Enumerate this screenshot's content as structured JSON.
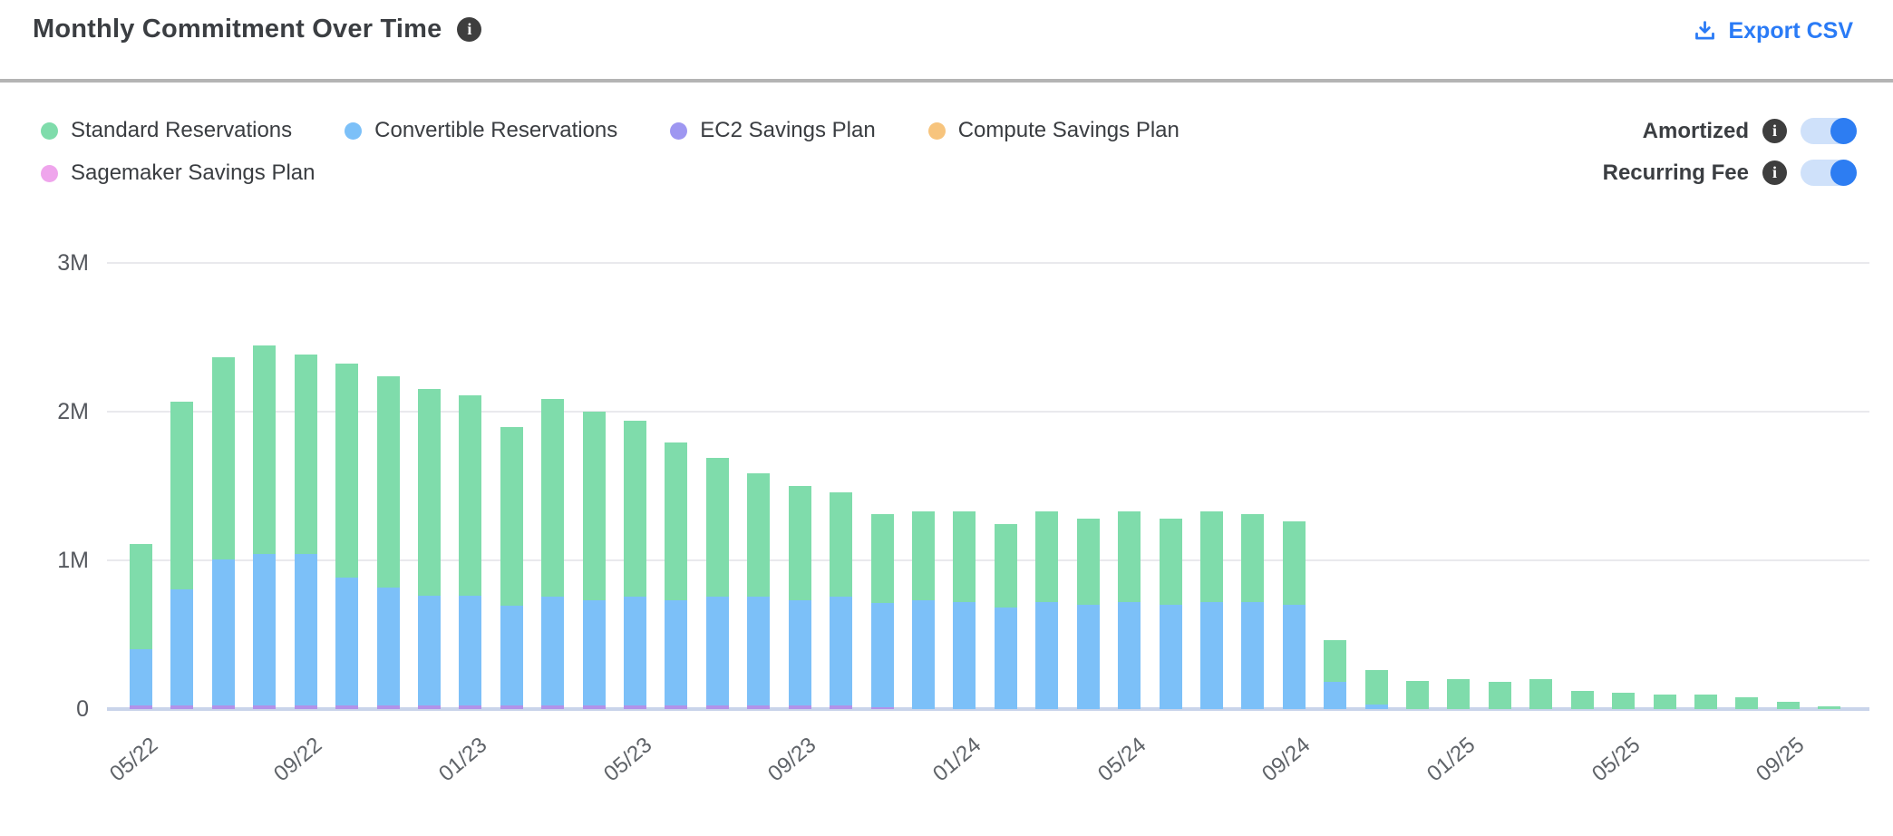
{
  "header": {
    "title": "Monthly Commitment Over Time",
    "export_label": "Export CSV"
  },
  "legend": {
    "items": [
      {
        "label": "Standard Reservations",
        "color": "#7fdcab"
      },
      {
        "label": "Convertible Reservations",
        "color": "#7cc0f8"
      },
      {
        "label": "EC2 Savings Plan",
        "color": "#9e97f1"
      },
      {
        "label": "Compute Savings Plan",
        "color": "#f7c47d"
      },
      {
        "label": "Sagemaker Savings Plan",
        "color": "#efa5ec"
      }
    ]
  },
  "toggles": [
    {
      "label": "Amortized",
      "state": "on"
    },
    {
      "label": "Recurring Fee",
      "state": "on"
    }
  ],
  "colors": {
    "accent_blue": "#2a7bf6",
    "toggle_on": "#2d7df2",
    "toggle_track": "#cfe1fa",
    "info_icon_bg": "#3e3e3e",
    "gridline": "#e9e9ed",
    "axis_line": "#c9d4ea",
    "title_text": "#3b3e42",
    "axis_text": "#5f6368",
    "divider": "#b4b4b4"
  },
  "chart_data": {
    "type": "bar",
    "stacked": true,
    "title": "Monthly Commitment Over Time",
    "values_in": "millions",
    "ylim": [
      0,
      3.1
    ],
    "grid": "horizontal",
    "legend_position": "top-left",
    "categories": [
      "05/22",
      "06/22",
      "07/22",
      "08/22",
      "09/22",
      "10/22",
      "11/22",
      "12/22",
      "01/23",
      "02/23",
      "03/23",
      "04/23",
      "05/23",
      "06/23",
      "07/23",
      "08/23",
      "09/23",
      "10/23",
      "11/23",
      "12/23",
      "01/24",
      "02/24",
      "03/24",
      "04/24",
      "05/24",
      "06/24",
      "07/24",
      "08/24",
      "09/24",
      "10/24",
      "11/24",
      "12/24",
      "01/25",
      "02/25",
      "03/25",
      "04/25",
      "05/25",
      "06/25",
      "07/25",
      "08/25",
      "09/25",
      "10/25"
    ],
    "xtick_indices": [
      0,
      4,
      8,
      12,
      16,
      20,
      24,
      28,
      32,
      36,
      40
    ],
    "xtick_labels": [
      "05/22",
      "09/22",
      "01/23",
      "05/23",
      "09/23",
      "01/24",
      "05/24",
      "09/24",
      "01/25",
      "05/25",
      "09/25"
    ],
    "yticks": [
      {
        "value": 0,
        "label": "0"
      },
      {
        "value": 1,
        "label": "1M"
      },
      {
        "value": 2,
        "label": "2M"
      },
      {
        "value": 3,
        "label": "3M"
      }
    ],
    "stack_order_bottom_to_top": [
      "EC2 Savings Plan",
      "Convertible Reservations",
      "Standard Reservations",
      "Compute Savings Plan",
      "Sagemaker Savings Plan"
    ],
    "series": [
      {
        "name": "EC2 Savings Plan",
        "color": "#b292e9",
        "values": [
          0.025,
          0.025,
          0.025,
          0.025,
          0.025,
          0.025,
          0.025,
          0.025,
          0.025,
          0.025,
          0.025,
          0.025,
          0.025,
          0.025,
          0.025,
          0.025,
          0.025,
          0.025,
          0.015,
          0,
          0,
          0,
          0,
          0,
          0,
          0,
          0,
          0,
          0,
          0,
          0,
          0,
          0,
          0,
          0,
          0,
          0,
          0,
          0,
          0,
          0,
          0
        ]
      },
      {
        "name": "Convertible Reservations",
        "color": "#7cc0f8",
        "values": [
          0.38,
          0.78,
          0.98,
          1.02,
          1.02,
          0.86,
          0.79,
          0.74,
          0.74,
          0.67,
          0.73,
          0.71,
          0.73,
          0.71,
          0.73,
          0.73,
          0.71,
          0.73,
          0.7,
          0.73,
          0.72,
          0.68,
          0.72,
          0.7,
          0.72,
          0.7,
          0.72,
          0.72,
          0.7,
          0.18,
          0.03,
          0,
          0,
          0,
          0,
          0,
          0,
          0,
          0,
          0,
          0,
          0
        ]
      },
      {
        "name": "Standard Reservations",
        "color": "#7fdcab",
        "values": [
          0.71,
          1.26,
          1.36,
          1.4,
          1.34,
          1.44,
          1.42,
          1.39,
          1.35,
          1.2,
          1.33,
          1.27,
          1.18,
          1.06,
          0.93,
          0.83,
          0.77,
          0.7,
          0.6,
          0.6,
          0.61,
          0.56,
          0.61,
          0.58,
          0.61,
          0.58,
          0.61,
          0.59,
          0.56,
          0.28,
          0.23,
          0.19,
          0.2,
          0.18,
          0.2,
          0.12,
          0.11,
          0.1,
          0.1,
          0.08,
          0.05,
          0.02
        ]
      },
      {
        "name": "Compute Savings Plan",
        "color": "#f7c47d",
        "values": [
          0,
          0,
          0,
          0,
          0,
          0,
          0,
          0,
          0,
          0,
          0,
          0,
          0,
          0,
          0,
          0,
          0,
          0,
          0,
          0,
          0,
          0,
          0,
          0,
          0,
          0,
          0,
          0,
          0,
          0,
          0,
          0,
          0,
          0,
          0,
          0,
          0,
          0,
          0,
          0,
          0,
          0
        ]
      },
      {
        "name": "Sagemaker Savings Plan",
        "color": "#efa5ec",
        "values": [
          0,
          0,
          0,
          0,
          0,
          0,
          0,
          0,
          0,
          0,
          0,
          0,
          0,
          0,
          0,
          0,
          0,
          0,
          0,
          0,
          0,
          0,
          0,
          0,
          0,
          0,
          0,
          0,
          0,
          0,
          0,
          0,
          0,
          0,
          0,
          0,
          0,
          0,
          0,
          0,
          0,
          0
        ]
      }
    ]
  }
}
